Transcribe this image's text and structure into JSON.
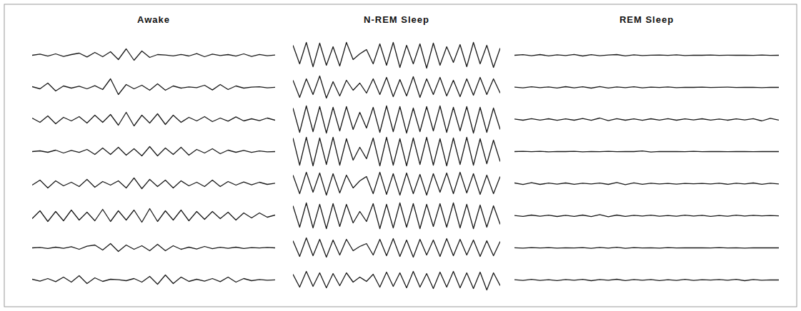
{
  "chart_data": [
    {
      "type": "line",
      "title": "Awake",
      "tick_labels": false,
      "color": "#1a1a1a",
      "xlim": [
        0,
        31
      ],
      "ylim": [
        -1,
        1
      ],
      "series": [
        {
          "values": [
            0,
            0.08,
            -0.06,
            0.1,
            -0.08,
            0.05,
            0.15,
            -0.12,
            0.2,
            -0.1,
            0.25,
            -0.3,
            0.45,
            -0.35,
            0.3,
            -0.15,
            0.05,
            0.02,
            -0.04,
            0.06,
            -0.05,
            0.12,
            -0.1,
            0.08,
            -0.02,
            0.05,
            -0.06,
            0.1,
            -0.08,
            0.06,
            -0.03,
            0.02
          ]
        },
        {
          "values": [
            0.05,
            -0.1,
            0.3,
            -0.25,
            0.1,
            -0.05,
            0.08,
            -0.1,
            0.12,
            -0.15,
            0.6,
            -0.5,
            0.2,
            -0.1,
            0.15,
            -0.2,
            0.25,
            -0.2,
            0.1,
            -0.05,
            0.03,
            -0.02,
            0.15,
            -0.18,
            0.2,
            -0.15,
            0.1,
            -0.05,
            0.02,
            0.04,
            -0.03,
            0.01
          ]
        },
        {
          "values": [
            0.1,
            -0.2,
            0.25,
            -0.3,
            0.15,
            -0.1,
            0.2,
            -0.25,
            0.3,
            -0.2,
            0.35,
            -0.4,
            0.5,
            -0.45,
            0.3,
            -0.25,
            0.4,
            -0.35,
            0.3,
            -0.2,
            0.15,
            -0.1,
            0.2,
            -0.15,
            0.1,
            -0.12,
            0.18,
            -0.1,
            0.05,
            -0.08,
            0.1,
            -0.05
          ]
        },
        {
          "values": [
            0,
            0.05,
            -0.05,
            0.1,
            -0.1,
            0.08,
            -0.06,
            0.15,
            -0.2,
            0.25,
            -0.2,
            0.3,
            -0.25,
            0.2,
            -0.3,
            0.35,
            -0.3,
            0.25,
            -0.2,
            0.3,
            -0.25,
            0.15,
            -0.1,
            0.2,
            -0.15,
            0.1,
            -0.05,
            0.08,
            -0.06,
            0.04,
            -0.02,
            0
          ]
        },
        {
          "values": [
            -0.1,
            0.25,
            -0.3,
            0.2,
            -0.15,
            0.1,
            -0.2,
            0.3,
            -0.25,
            0.15,
            -0.1,
            0.2,
            -0.3,
            0.4,
            -0.35,
            0.3,
            -0.2,
            0.25,
            -0.3,
            0.2,
            -0.15,
            0.1,
            -0.2,
            0.25,
            -0.2,
            0.15,
            -0.1,
            0.12,
            -0.08,
            0.1,
            -0.05,
            0.03
          ]
        },
        {
          "values": [
            -0.2,
            0.35,
            -0.4,
            0.3,
            -0.35,
            0.4,
            -0.3,
            0.25,
            -0.35,
            0.45,
            -0.4,
            0.35,
            -0.3,
            0.4,
            -0.45,
            0.5,
            -0.4,
            0.35,
            -0.3,
            0.4,
            -0.35,
            0.3,
            -0.25,
            0.3,
            -0.2,
            0.25,
            -0.3,
            0.2,
            -0.15,
            0.2,
            -0.1,
            0.05
          ]
        },
        {
          "values": [
            0,
            0.03,
            -0.04,
            0.05,
            -0.03,
            0.08,
            -0.1,
            0.12,
            0.2,
            -0.15,
            0.3,
            -0.25,
            0.2,
            -0.1,
            0.15,
            -0.2,
            0.25,
            -0.2,
            0.15,
            -0.1,
            0.05,
            -0.08,
            0.1,
            -0.06,
            0.04,
            -0.03,
            0.05,
            -0.04,
            0.02,
            -0.01,
            0.03,
            0
          ]
        },
        {
          "values": [
            0.05,
            -0.08,
            0.1,
            -0.12,
            0.2,
            -0.15,
            0.3,
            -0.25,
            0.15,
            -0.1,
            0.05,
            0.02,
            -0.05,
            0.1,
            -0.15,
            0.25,
            -0.3,
            0.35,
            -0.25,
            0.2,
            -0.1,
            0.05,
            -0.08,
            0.1,
            -0.12,
            0.2,
            -0.15,
            0.1,
            -0.05,
            0.03,
            -0.02,
            0.01
          ]
        }
      ]
    },
    {
      "type": "line",
      "title": "N-REM Sleep",
      "tick_labels": false,
      "color": "#1a1a1a",
      "xlim": [
        0,
        31
      ],
      "ylim": [
        -1,
        1
      ],
      "series": [
        {
          "values": [
            0.7,
            -0.6,
            0.9,
            -0.8,
            0.85,
            -0.7,
            0.6,
            -0.75,
            0.9,
            -0.3,
            0.1,
            0.4,
            -0.6,
            0.8,
            -0.7,
            0.9,
            -0.85,
            0.7,
            -0.6,
            0.8,
            -0.9,
            0.85,
            -0.7,
            0.6,
            -0.5,
            0.75,
            -0.8,
            0.9,
            -0.6,
            0.7,
            -0.85,
            0.5
          ]
        },
        {
          "values": [
            0.5,
            -0.7,
            0.6,
            -0.5,
            0.8,
            -0.75,
            0.4,
            -0.6,
            0.5,
            -0.2,
            0.3,
            -0.4,
            0.6,
            -0.5,
            0.7,
            -0.65,
            0.55,
            -0.6,
            0.75,
            -0.7,
            0.6,
            -0.5,
            0.7,
            -0.6,
            0.5,
            -0.65,
            0.6,
            -0.55,
            0.7,
            -0.5,
            0.6,
            -0.4
          ]
        },
        {
          "values": [
            0.8,
            -0.9,
            0.95,
            -0.85,
            0.9,
            -0.95,
            0.85,
            -0.8,
            0.9,
            -0.7,
            0.5,
            -0.6,
            0.85,
            -0.9,
            0.95,
            -0.85,
            0.9,
            -0.95,
            0.8,
            -0.85,
            0.9,
            -0.8,
            0.95,
            -0.9,
            0.85,
            -0.8,
            0.9,
            -0.95,
            0.85,
            -0.9,
            0.8,
            -0.7
          ]
        },
        {
          "values": [
            0.95,
            -0.95,
            1,
            -1,
            0.95,
            -0.9,
            1,
            -0.95,
            0.9,
            -0.6,
            0.3,
            -0.5,
            0.95,
            -1,
            1,
            -0.95,
            0.9,
            -1,
            0.95,
            -0.9,
            1,
            -0.95,
            0.9,
            -1,
            0.95,
            -0.9,
            1,
            -0.95,
            0.9,
            -0.85,
            0.8,
            -0.7
          ]
        },
        {
          "values": [
            0.6,
            -0.7,
            0.8,
            -0.6,
            0.75,
            -0.8,
            0.7,
            -0.65,
            0.6,
            -0.3,
            0.2,
            0.5,
            -0.7,
            0.8,
            -0.75,
            0.7,
            -0.8,
            0.75,
            -0.7,
            0.65,
            -0.8,
            0.7,
            -0.6,
            0.75,
            -0.7,
            0.8,
            -0.65,
            0.7,
            -0.75,
            0.6,
            -0.7,
            0.5
          ]
        },
        {
          "values": [
            0.7,
            -0.8,
            0.9,
            -0.85,
            0.8,
            -0.9,
            0.85,
            -0.75,
            0.8,
            -0.5,
            0.3,
            -0.4,
            0.85,
            -0.9,
            0.8,
            -0.85,
            0.9,
            -0.8,
            0.85,
            -0.9,
            0.8,
            -0.75,
            0.85,
            -0.8,
            0.9,
            -0.85,
            0.8,
            -0.9,
            0.75,
            -0.8,
            0.7,
            -0.6
          ]
        },
        {
          "values": [
            0.5,
            -0.6,
            0.7,
            -0.55,
            0.6,
            -0.65,
            0.55,
            -0.5,
            0.6,
            -0.2,
            0.1,
            0.3,
            -0.5,
            0.6,
            -0.55,
            0.65,
            -0.6,
            0.55,
            -0.65,
            0.6,
            -0.5,
            0.55,
            -0.6,
            0.65,
            -0.55,
            0.6,
            -0.5,
            0.55,
            -0.6,
            0.5,
            -0.55,
            0.45
          ]
        },
        {
          "values": [
            0.4,
            -0.5,
            0.6,
            -0.45,
            0.5,
            -0.55,
            0.45,
            -0.4,
            0.5,
            -0.15,
            0.2,
            -0.1,
            0.4,
            -0.5,
            0.55,
            -0.45,
            0.5,
            -0.55,
            0.6,
            -0.5,
            0.45,
            -0.6,
            0.55,
            -0.5,
            0.6,
            -0.55,
            0.5,
            -0.6,
            0.55,
            -0.7,
            0.5,
            -0.4
          ]
        }
      ]
    },
    {
      "type": "line",
      "title": "REM Sleep",
      "tick_labels": false,
      "color": "#1a1a1a",
      "xlim": [
        0,
        31
      ],
      "ylim": [
        -1,
        1
      ],
      "series": [
        {
          "values": [
            0,
            0.04,
            -0.03,
            0.05,
            -0.04,
            0.03,
            -0.02,
            0.06,
            -0.05,
            0.04,
            -0.03,
            0.02,
            0.05,
            -0.04,
            0.03,
            -0.02,
            0.01,
            0.02,
            -0.01,
            0.03,
            -0.02,
            0.01,
            0,
            0.02,
            -0.01,
            0.01,
            0,
            0.01,
            -0.01,
            0.02,
            -0.01,
            0
          ]
        },
        {
          "values": [
            0.02,
            -0.03,
            0.04,
            -0.02,
            0.03,
            -0.04,
            0.05,
            -0.03,
            0.04,
            -0.05,
            0.06,
            -0.04,
            0.03,
            -0.02,
            0.04,
            -0.03,
            0.02,
            -0.01,
            0.03,
            -0.02,
            0.01,
            0,
            0.02,
            -0.01,
            0.01,
            0.02,
            -0.01,
            0,
            0.01,
            -0.02,
            0.01,
            0
          ]
        },
        {
          "values": [
            0.03,
            -0.05,
            0.06,
            -0.04,
            0.05,
            -0.06,
            0.04,
            -0.05,
            0.07,
            -0.06,
            0.1,
            -0.08,
            0.06,
            -0.05,
            0.04,
            -0.06,
            0.05,
            -0.04,
            0.06,
            -0.05,
            0.04,
            -0.03,
            0.05,
            -0.04,
            0.03,
            -0.05,
            0.04,
            -0.03,
            0.06,
            -0.1,
            0.08,
            -0.04
          ]
        },
        {
          "values": [
            0,
            0.02,
            -0.01,
            0.02,
            -0.02,
            0.01,
            0,
            0.02,
            -0.02,
            0.01,
            -0.01,
            0.02,
            -0.01,
            0.01,
            0,
            0.04,
            -0.03,
            0.01,
            0,
            0.01,
            -0.01,
            0.02,
            -0.01,
            0.01,
            0,
            -0.01,
            0.01,
            0,
            -0.01,
            0.01,
            0,
            0
          ]
        },
        {
          "values": [
            0.05,
            -0.06,
            0.07,
            -0.05,
            0.04,
            -0.03,
            0.05,
            -0.04,
            0.03,
            -0.02,
            0.04,
            -0.05,
            0.08,
            -0.07,
            0.06,
            -0.04,
            0.03,
            -0.02,
            0.02,
            -0.03,
            0.02,
            -0.01,
            0.02,
            -0.02,
            0.03,
            -0.04,
            0.03,
            -0.02,
            0.05,
            -0.04,
            0.03,
            -0.02
          ]
        },
        {
          "values": [
            0.02,
            -0.04,
            0.05,
            -0.03,
            0.04,
            -0.05,
            0.03,
            -0.04,
            0.05,
            -0.06,
            0.08,
            -0.07,
            0.05,
            -0.04,
            0.03,
            -0.02,
            0.04,
            -0.03,
            0.02,
            -0.03,
            0.04,
            -0.02,
            0.03,
            -0.04,
            0.02,
            -0.03,
            0.04,
            -0.02,
            0.03,
            -0.01,
            0.02,
            -0.01
          ]
        },
        {
          "values": [
            0.01,
            -0.02,
            0.02,
            -0.01,
            0.02,
            -0.02,
            0.01,
            -0.01,
            0.02,
            -0.03,
            0.03,
            -0.02,
            0.04,
            -0.03,
            0.02,
            -0.01,
            0.01,
            -0.02,
            0.02,
            -0.01,
            0.01,
            0,
            0.01,
            -0.01,
            0.02,
            -0.01,
            0.01,
            -0.02,
            0.01,
            0,
            0.01,
            0
          ]
        },
        {
          "values": [
            0.02,
            -0.03,
            0.04,
            -0.03,
            0.02,
            -0.04,
            0.03,
            -0.02,
            0.04,
            -0.05,
            0.03,
            -0.02,
            0.05,
            -0.04,
            0.03,
            -0.02,
            0.03,
            -0.04,
            0.02,
            -0.03,
            0.04,
            -0.03,
            0.02,
            -0.01,
            0.03,
            -0.02,
            0.04,
            -0.05,
            0.03,
            -0.02,
            0.01,
            0
          ]
        }
      ]
    }
  ]
}
